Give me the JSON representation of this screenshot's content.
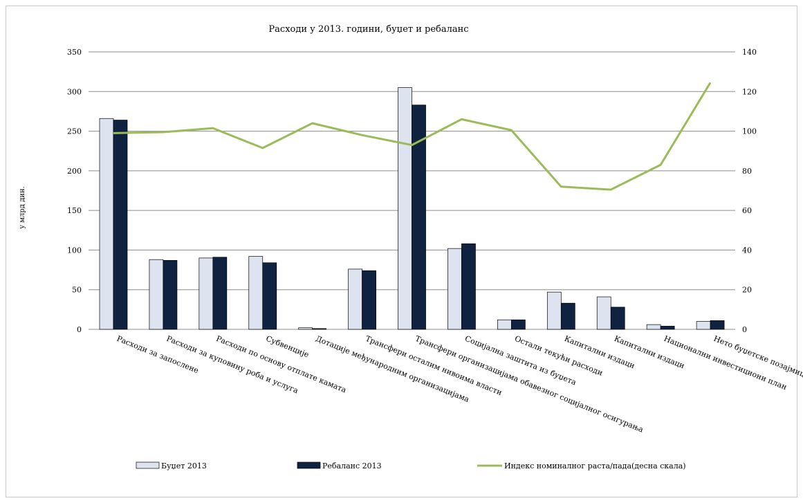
{
  "chart_data": {
    "type": "bar",
    "title": "Расходи у 2013. години, буџет и ребаланс",
    "ylabel": "у млрд дин.",
    "ylim": [
      0,
      350
    ],
    "y2lim": [
      0,
      140
    ],
    "yticks": [
      0,
      50,
      100,
      150,
      200,
      250,
      300,
      350
    ],
    "y2ticks": [
      0,
      20,
      40,
      60,
      80,
      100,
      120,
      140
    ],
    "grid": true,
    "legend_position": "bottom",
    "categories": [
      "Расходи за запослене",
      "Расходи за куповину роба и услуга",
      "Расходи по основу отплате камата",
      "Субвенције",
      "Дотације међународним организацијама",
      "Трансфери осталим нивоима власти",
      "Трансфери организацијама обавезног социјалног осигурања",
      "Социјална заштита из буџета",
      "Остали текући расходи",
      "Капитални издаци",
      "Капитални издаци",
      "Национални инвестициони план",
      "Нето буџетске позајмице"
    ],
    "series": [
      {
        "name": "Буџет 2013",
        "type": "bar",
        "color": "#dde4f0",
        "axis": "left",
        "values": [
          266,
          88,
          90,
          92,
          2,
          76,
          305,
          102,
          12,
          47,
          41,
          6,
          10
        ]
      },
      {
        "name": "Ребаланс 2013",
        "type": "bar",
        "color": "#0f2341",
        "axis": "left",
        "values": [
          264,
          87,
          91,
          84,
          1,
          74,
          283,
          108,
          12,
          33,
          28,
          4,
          11
        ]
      },
      {
        "name": "Индекс номиналног раста/пада(десна скала)",
        "type": "line",
        "color": "#9bbb59",
        "axis": "right",
        "values": [
          99,
          99.5,
          101.5,
          91.5,
          104,
          98,
          93,
          106,
          100.5,
          72,
          70.5,
          83,
          124.5
        ]
      }
    ]
  }
}
